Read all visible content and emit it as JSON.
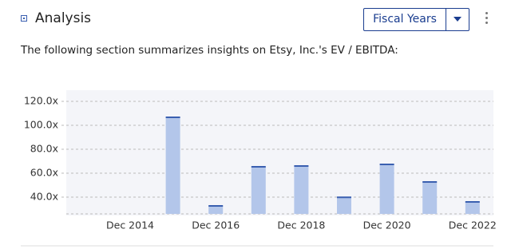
{
  "header": {
    "title": "Analysis",
    "dropdown": "Fiscal Years"
  },
  "description": "The following section summarizes insights on Etsy, Inc.'s EV / EBITDA:",
  "chart_data": {
    "type": "bar",
    "categories": [
      "Dec 2014",
      null,
      "Dec 2016",
      null,
      "Dec 2018",
      null,
      "Dec 2020",
      null,
      "Dec 2022"
    ],
    "values": [
      null,
      106.7,
      32.7,
      65.3,
      66,
      39.8,
      67.3,
      52.7,
      36
    ],
    "color": "#b3c6ea",
    "edge_color": "#3a5fb0",
    "ylim": [
      26,
      128
    ],
    "yticks": [
      {
        "value": 40,
        "label": "40.0x"
      },
      {
        "value": 60,
        "label": "60.0x"
      },
      {
        "value": 80,
        "label": "80.0x"
      },
      {
        "value": 100,
        "label": "100.0x"
      },
      {
        "value": 120,
        "label": "120.0x"
      }
    ],
    "grid": true
  }
}
